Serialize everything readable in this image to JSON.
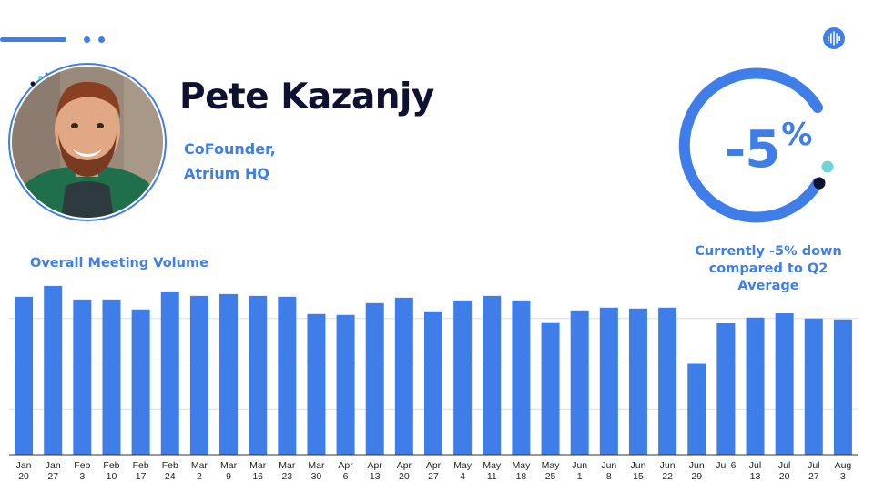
{
  "profile": {
    "name": "Pete Kazanjy",
    "role_line1": "CoFounder,",
    "role_line2": "Atrium HQ"
  },
  "metric": {
    "percent_value": "-5",
    "percent_sign": "%",
    "caption_line1": "Currently -5% down",
    "caption_line2": "compared to Q2 Average"
  },
  "colors": {
    "accent": "#3f7ee8",
    "name_text": "#0e1130",
    "teal_dot": "#6fd3d8",
    "navy_dot": "#0e1130"
  },
  "icons": {
    "logo": "soundwave-logo-icon",
    "avatar": "person-photo"
  },
  "chart_data": {
    "type": "bar",
    "title": "Overall Meeting Volume",
    "categories": [
      [
        "Jan",
        "20"
      ],
      [
        "Jan",
        "27"
      ],
      [
        "Feb",
        "3"
      ],
      [
        "Feb",
        "10"
      ],
      [
        "Feb",
        "17"
      ],
      [
        "Feb",
        "24"
      ],
      [
        "Mar",
        "2"
      ],
      [
        "Mar",
        "9"
      ],
      [
        "Mar",
        "16"
      ],
      [
        "Mar",
        "23"
      ],
      [
        "Mar",
        "30"
      ],
      [
        "Apr",
        "6"
      ],
      [
        "Apr",
        "13"
      ],
      [
        "Apr",
        "20"
      ],
      [
        "Apr",
        "27"
      ],
      [
        "May",
        "4"
      ],
      [
        "May",
        "11"
      ],
      [
        "May",
        "18"
      ],
      [
        "May",
        "25"
      ],
      [
        "Jun",
        "1"
      ],
      [
        "Jun",
        "8"
      ],
      [
        "Jun",
        "15"
      ],
      [
        "Jun",
        "22"
      ],
      [
        "Jun",
        "29"
      ],
      [
        "Jul 6"
      ],
      [
        "Jul",
        "13"
      ],
      [
        "Jul",
        "20"
      ],
      [
        "Jul",
        "27"
      ],
      [
        "Aug",
        "3"
      ]
    ],
    "values": [
      174,
      186,
      171,
      171,
      160,
      180,
      175,
      177,
      175,
      174,
      155,
      154,
      167,
      173,
      158,
      170,
      175,
      170,
      146,
      159,
      162,
      161,
      162,
      101,
      145,
      151,
      156,
      150,
      149
    ],
    "ylim": [
      0,
      200
    ],
    "gridlines": [
      50,
      100,
      150
    ],
    "grid": true,
    "legend": "none"
  }
}
